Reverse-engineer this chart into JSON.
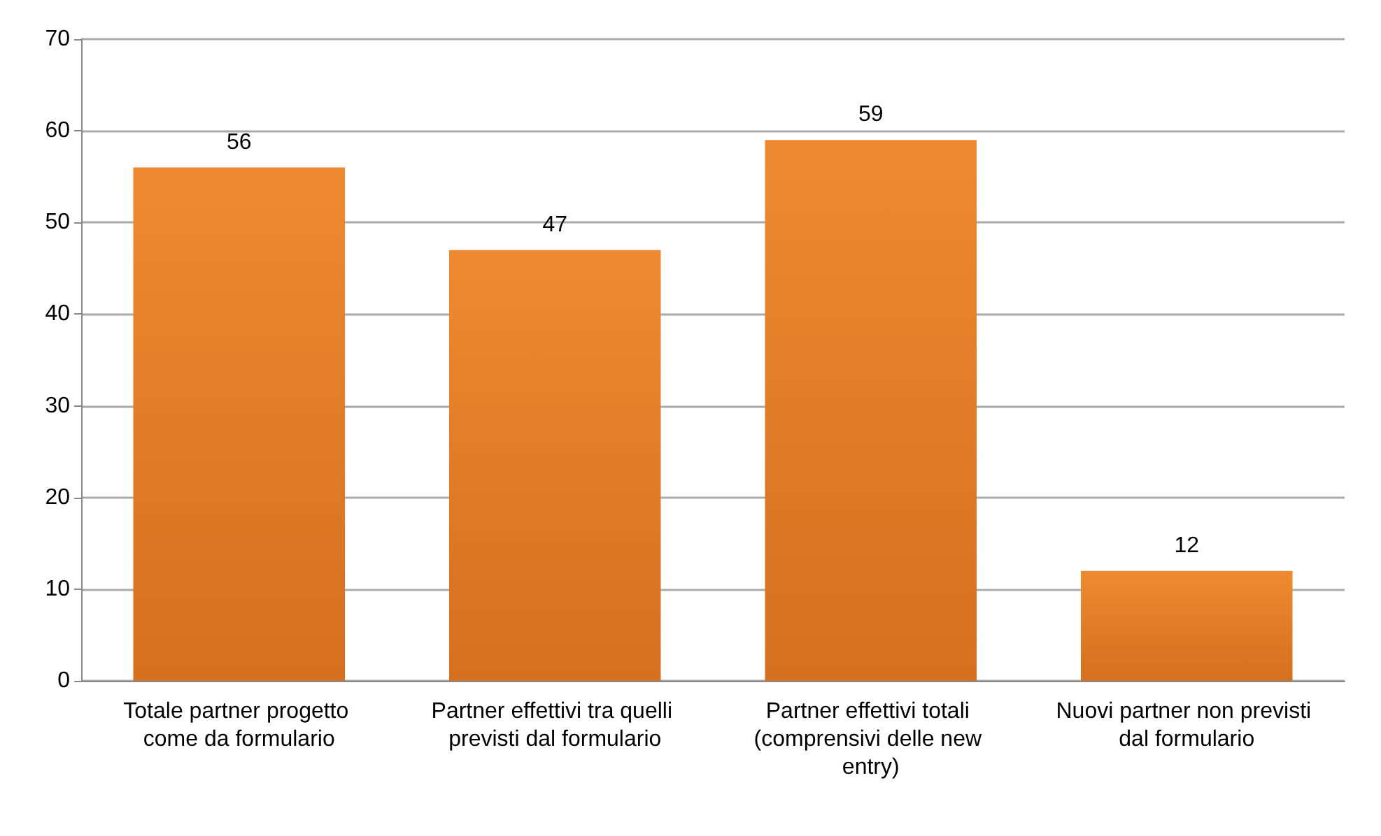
{
  "chart_data": {
    "type": "bar",
    "categories": [
      "Totale partner progetto come da formulario",
      "Partner effettivi tra quelli previsti dal formulario",
      "Partner effettivi totali (comprensivi delle new entry)",
      "Nuovi partner non previsti dal formulario"
    ],
    "values": [
      56,
      47,
      59,
      12
    ],
    "color": "#ee8a2f",
    "ylim": [
      0,
      70
    ],
    "yticks": [
      0,
      10,
      20,
      30,
      40,
      50,
      60,
      70
    ],
    "grid": "y",
    "data_labels": true
  }
}
